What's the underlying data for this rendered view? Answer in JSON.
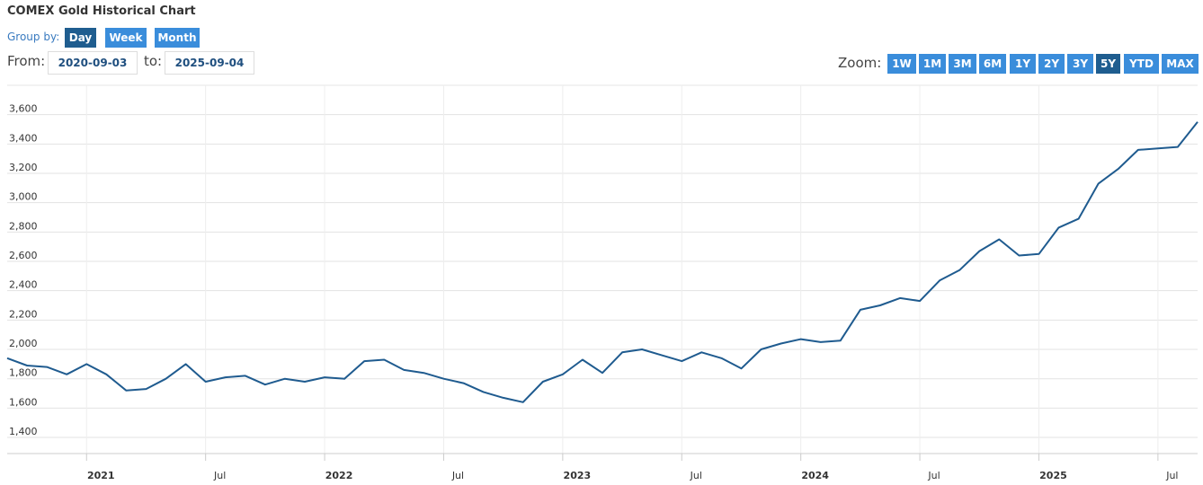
{
  "header": {
    "title": "COMEX Gold Historical Chart",
    "group_by": {
      "label": "Group by:",
      "options": [
        "Day",
        "Week",
        "Month"
      ],
      "selected": 0
    },
    "range": {
      "from_label": "From:",
      "from": "2020-09-03",
      "to_label": "to:",
      "to": "2025-09-04"
    },
    "zoom": {
      "label": "Zoom:",
      "options": [
        "1W",
        "1M",
        "3M",
        "6M",
        "1Y",
        "2Y",
        "3Y",
        "5Y",
        "YTD",
        "MAX"
      ],
      "selected": 7
    }
  },
  "chart_data": {
    "type": "line",
    "color": "#1f5b8f",
    "grid": true,
    "x": [
      "2020-09",
      "2020-10",
      "2020-11",
      "2020-12",
      "2021-01",
      "2021-02",
      "2021-03",
      "2021-04",
      "2021-05",
      "2021-06",
      "2021-07",
      "2021-08",
      "2021-09",
      "2021-10",
      "2021-11",
      "2021-12",
      "2022-01",
      "2022-02",
      "2022-03",
      "2022-04",
      "2022-05",
      "2022-06",
      "2022-07",
      "2022-08",
      "2022-09",
      "2022-10",
      "2022-11",
      "2022-12",
      "2023-01",
      "2023-02",
      "2023-03",
      "2023-04",
      "2023-05",
      "2023-06",
      "2023-07",
      "2023-08",
      "2023-09",
      "2023-10",
      "2023-11",
      "2023-12",
      "2024-01",
      "2024-02",
      "2024-03",
      "2024-04",
      "2024-05",
      "2024-06",
      "2024-07",
      "2024-08",
      "2024-09",
      "2024-10",
      "2024-11",
      "2024-12",
      "2025-01",
      "2025-02",
      "2025-03",
      "2025-04",
      "2025-05",
      "2025-06",
      "2025-07",
      "2025-08",
      "2025-09"
    ],
    "values": [
      1940,
      1890,
      1880,
      1830,
      1900,
      1830,
      1720,
      1730,
      1800,
      1900,
      1780,
      1810,
      1820,
      1760,
      1800,
      1780,
      1810,
      1800,
      1920,
      1930,
      1860,
      1840,
      1800,
      1770,
      1710,
      1670,
      1640,
      1780,
      1830,
      1930,
      1840,
      1980,
      2000,
      1960,
      1920,
      1980,
      1940,
      1870,
      2000,
      2040,
      2070,
      2050,
      2060,
      2270,
      2300,
      2350,
      2330,
      2470,
      2540,
      2670,
      2750,
      2640,
      2650,
      2830,
      2890,
      3130,
      3230,
      3360,
      3370,
      3380,
      3550
    ],
    "xlim": [
      "2020-09",
      "2025-09"
    ],
    "xticks": [
      {
        "value": "2021-01",
        "label": "2021"
      },
      {
        "value": "2021-07",
        "label": "Jul"
      },
      {
        "value": "2022-01",
        "label": "2022"
      },
      {
        "value": "2022-07",
        "label": "Jul"
      },
      {
        "value": "2023-01",
        "label": "2023"
      },
      {
        "value": "2023-07",
        "label": "Jul"
      },
      {
        "value": "2024-01",
        "label": "2024"
      },
      {
        "value": "2024-07",
        "label": "Jul"
      },
      {
        "value": "2025-01",
        "label": "2025"
      },
      {
        "value": "2025-07",
        "label": "Jul"
      }
    ],
    "ylim": [
      1290,
      3800
    ],
    "yticks": [
      {
        "value": 1400,
        "label": "1,400"
      },
      {
        "value": 1600,
        "label": "1,600"
      },
      {
        "value": 1800,
        "label": "1,800"
      },
      {
        "value": 2000,
        "label": "2,000"
      },
      {
        "value": 2200,
        "label": "2,200"
      },
      {
        "value": 2400,
        "label": "2,400"
      },
      {
        "value": 2600,
        "label": "2,600"
      },
      {
        "value": 2800,
        "label": "2,800"
      },
      {
        "value": 3000,
        "label": "3,000"
      },
      {
        "value": 3200,
        "label": "3,200"
      },
      {
        "value": 3400,
        "label": "3,400"
      },
      {
        "value": 3600,
        "label": "3,600"
      }
    ]
  }
}
